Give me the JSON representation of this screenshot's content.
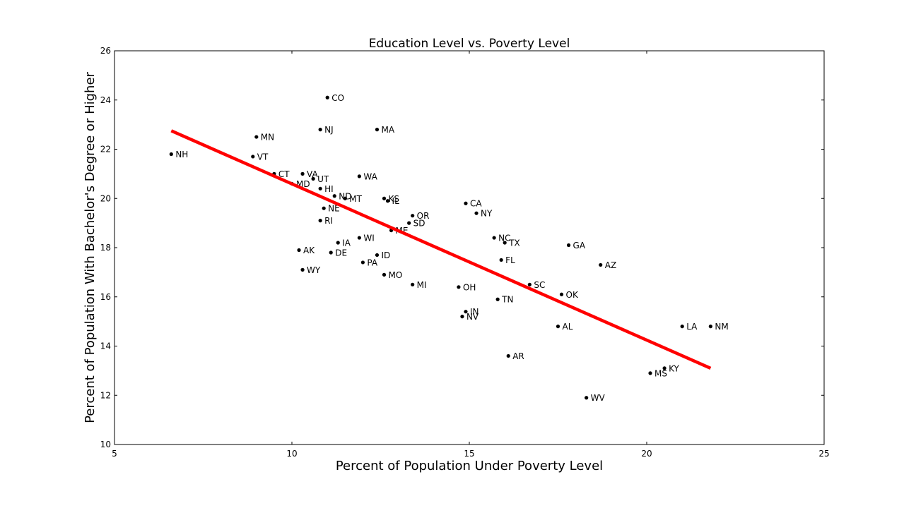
{
  "chart_data": {
    "type": "scatter",
    "title": "Education Level vs. Poverty Level",
    "xlabel": "Percent of Population Under Poverty Level",
    "ylabel": "Percent of Population With Bachelor's Degree or Higher",
    "xlim": [
      5,
      25
    ],
    "ylim": [
      10,
      26
    ],
    "xticks": [
      5,
      10,
      15,
      20,
      25
    ],
    "yticks": [
      10,
      12,
      14,
      16,
      18,
      20,
      22,
      24,
      26
    ],
    "grid": false,
    "colors": {
      "points": "#000000",
      "trendline": "#ff0000"
    },
    "trendline": {
      "x": [
        6.6,
        21.8
      ],
      "y": [
        22.75,
        13.1
      ]
    },
    "points": [
      {
        "label": "CO",
        "x": 11.0,
        "y": 24.1
      },
      {
        "label": "NJ",
        "x": 10.8,
        "y": 22.8
      },
      {
        "label": "MA",
        "x": 12.4,
        "y": 22.8
      },
      {
        "label": "MN",
        "x": 9.0,
        "y": 22.5
      },
      {
        "label": "NH",
        "x": 6.6,
        "y": 21.8
      },
      {
        "label": "VT",
        "x": 8.9,
        "y": 21.7
      },
      {
        "label": "CT",
        "x": 9.5,
        "y": 21.0
      },
      {
        "label": "VA",
        "x": 10.3,
        "y": 21.0
      },
      {
        "label": "WA",
        "x": 11.9,
        "y": 20.9
      },
      {
        "label": "UT",
        "x": 10.6,
        "y": 20.8
      },
      {
        "label": "MD",
        "x": 10.0,
        "y": 20.6
      },
      {
        "label": "HI",
        "x": 10.8,
        "y": 20.4
      },
      {
        "label": "ND",
        "x": 11.2,
        "y": 20.1
      },
      {
        "label": "MT",
        "x": 11.5,
        "y": 20.0
      },
      {
        "label": "KS",
        "x": 12.6,
        "y": 20.0
      },
      {
        "label": "IL",
        "x": 12.7,
        "y": 19.9
      },
      {
        "label": "CA",
        "x": 14.9,
        "y": 19.8
      },
      {
        "label": "NE",
        "x": 10.9,
        "y": 19.6
      },
      {
        "label": "NY",
        "x": 15.2,
        "y": 19.4
      },
      {
        "label": "OR",
        "x": 13.4,
        "y": 19.3
      },
      {
        "label": "RI",
        "x": 10.8,
        "y": 19.1
      },
      {
        "label": "SD",
        "x": 13.3,
        "y": 19.0
      },
      {
        "label": "ME",
        "x": 12.8,
        "y": 18.7
      },
      {
        "label": "NC",
        "x": 15.7,
        "y": 18.4
      },
      {
        "label": "WI",
        "x": 11.9,
        "y": 18.4
      },
      {
        "label": "IA",
        "x": 11.3,
        "y": 18.2
      },
      {
        "label": "TX",
        "x": 16.0,
        "y": 18.2
      },
      {
        "label": "GA",
        "x": 17.8,
        "y": 18.1
      },
      {
        "label": "AK",
        "x": 10.2,
        "y": 17.9
      },
      {
        "label": "DE",
        "x": 11.1,
        "y": 17.8
      },
      {
        "label": "ID",
        "x": 12.4,
        "y": 17.7
      },
      {
        "label": "FL",
        "x": 15.9,
        "y": 17.5
      },
      {
        "label": "PA",
        "x": 12.0,
        "y": 17.4
      },
      {
        "label": "AZ",
        "x": 18.7,
        "y": 17.3
      },
      {
        "label": "WY",
        "x": 10.3,
        "y": 17.1
      },
      {
        "label": "MO",
        "x": 12.6,
        "y": 16.9
      },
      {
        "label": "MI",
        "x": 13.4,
        "y": 16.5
      },
      {
        "label": "SC",
        "x": 16.7,
        "y": 16.5
      },
      {
        "label": "OH",
        "x": 14.7,
        "y": 16.4
      },
      {
        "label": "OK",
        "x": 17.6,
        "y": 16.1
      },
      {
        "label": "TN",
        "x": 15.8,
        "y": 15.9
      },
      {
        "label": "IN",
        "x": 14.9,
        "y": 15.4
      },
      {
        "label": "NV",
        "x": 14.8,
        "y": 15.2
      },
      {
        "label": "AL",
        "x": 17.5,
        "y": 14.8
      },
      {
        "label": "LA",
        "x": 21.0,
        "y": 14.8
      },
      {
        "label": "NM",
        "x": 21.8,
        "y": 14.8
      },
      {
        "label": "AR",
        "x": 16.1,
        "y": 13.6
      },
      {
        "label": "KY",
        "x": 20.5,
        "y": 13.1
      },
      {
        "label": "MS",
        "x": 20.1,
        "y": 12.9
      },
      {
        "label": "WV",
        "x": 18.3,
        "y": 11.9
      }
    ]
  }
}
